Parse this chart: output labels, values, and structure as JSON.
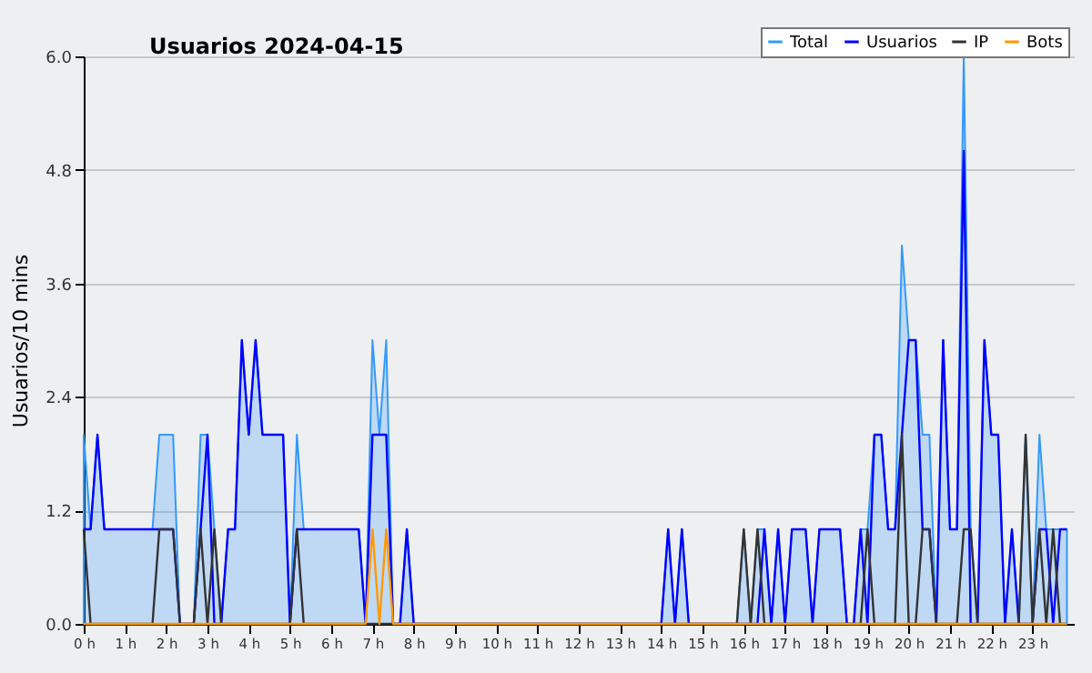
{
  "chart_data": {
    "type": "line",
    "title": "Usuarios  2024-04-15",
    "ylabel": "Usuarios/10 mins",
    "x": [
      0,
      0.167,
      0.333,
      0.5,
      0.667,
      0.833,
      1,
      1.167,
      1.333,
      1.5,
      1.667,
      1.833,
      2,
      2.167,
      2.333,
      2.5,
      2.667,
      2.833,
      3,
      3.167,
      3.333,
      3.5,
      3.667,
      3.833,
      4,
      4.167,
      4.333,
      4.5,
      4.667,
      4.833,
      5,
      5.167,
      5.333,
      5.5,
      5.667,
      5.833,
      6,
      6.167,
      6.333,
      6.5,
      6.667,
      6.833,
      7,
      7.167,
      7.333,
      7.5,
      7.667,
      7.833,
      8,
      8.167,
      8.333,
      8.5,
      8.667,
      8.833,
      9,
      9.167,
      9.333,
      9.5,
      9.667,
      9.833,
      10,
      10.167,
      10.333,
      10.5,
      10.667,
      10.833,
      11,
      11.167,
      11.333,
      11.5,
      11.667,
      11.833,
      12,
      12.167,
      12.333,
      12.5,
      12.667,
      12.833,
      13,
      13.167,
      13.333,
      13.5,
      13.667,
      13.833,
      14,
      14.167,
      14.333,
      14.5,
      14.667,
      14.833,
      15,
      15.167,
      15.333,
      15.5,
      15.667,
      15.833,
      16,
      16.167,
      16.333,
      16.5,
      16.667,
      16.833,
      17,
      17.167,
      17.333,
      17.5,
      17.667,
      17.833,
      18,
      18.167,
      18.333,
      18.5,
      18.667,
      18.833,
      19,
      19.167,
      19.333,
      19.5,
      19.667,
      19.833,
      20,
      20.167,
      20.333,
      20.5,
      20.667,
      20.833,
      21,
      21.167,
      21.333,
      21.5,
      21.667,
      21.833,
      22,
      22.167,
      22.333,
      22.5,
      22.667,
      22.833,
      23,
      23.167,
      23.333,
      23.5,
      23.667,
      23.833
    ],
    "series": [
      {
        "name": "Total",
        "type": "area",
        "color": "#3399ff",
        "values": [
          2,
          1,
          2,
          1,
          1,
          1,
          1,
          1,
          1,
          1,
          1,
          2,
          2,
          2,
          0,
          0,
          0,
          2,
          2,
          1,
          0,
          1,
          1,
          3,
          2,
          3,
          2,
          2,
          2,
          2,
          0,
          2,
          1,
          1,
          1,
          1,
          1,
          1,
          1,
          1,
          1,
          0,
          3,
          2,
          3,
          0,
          0,
          1,
          0,
          0,
          0,
          0,
          0,
          0,
          0,
          0,
          0,
          0,
          0,
          0,
          0,
          0,
          0,
          0,
          0,
          0,
          0,
          0,
          0,
          0,
          0,
          0,
          0,
          0,
          0,
          0,
          0,
          0,
          0,
          0,
          0,
          0,
          0,
          0,
          0,
          1,
          0,
          1,
          0,
          0,
          0,
          0,
          0,
          0,
          0,
          0,
          1,
          0,
          1,
          1,
          0,
          1,
          0,
          1,
          1,
          1,
          0,
          1,
          1,
          1,
          1,
          0,
          0,
          1,
          1,
          2,
          2,
          1,
          1,
          4,
          3,
          3,
          2,
          2,
          0,
          3,
          1,
          1,
          6,
          1,
          0,
          3,
          2,
          2,
          0,
          1,
          0,
          2,
          0,
          2,
          1,
          1,
          1,
          1
        ]
      },
      {
        "name": "Usuarios",
        "color": "#0000ff",
        "values": [
          1,
          1,
          2,
          1,
          1,
          1,
          1,
          1,
          1,
          1,
          1,
          1,
          1,
          1,
          0,
          0,
          0,
          1,
          2,
          0,
          0,
          1,
          1,
          3,
          2,
          3,
          2,
          2,
          2,
          2,
          0,
          1,
          1,
          1,
          1,
          1,
          1,
          1,
          1,
          1,
          1,
          0,
          2,
          2,
          2,
          0,
          0,
          1,
          0,
          0,
          0,
          0,
          0,
          0,
          0,
          0,
          0,
          0,
          0,
          0,
          0,
          0,
          0,
          0,
          0,
          0,
          0,
          0,
          0,
          0,
          0,
          0,
          0,
          0,
          0,
          0,
          0,
          0,
          0,
          0,
          0,
          0,
          0,
          0,
          0,
          1,
          0,
          1,
          0,
          0,
          0,
          0,
          0,
          0,
          0,
          0,
          0,
          0,
          0,
          1,
          0,
          1,
          0,
          1,
          1,
          1,
          0,
          1,
          1,
          1,
          1,
          0,
          0,
          1,
          0,
          2,
          2,
          1,
          1,
          2,
          3,
          3,
          1,
          1,
          0,
          3,
          1,
          1,
          5,
          0,
          0,
          3,
          2,
          2,
          0,
          1,
          0,
          0,
          0,
          1,
          1,
          0,
          1,
          1
        ]
      },
      {
        "name": "IP",
        "color": "#333333",
        "values": [
          1,
          0,
          0,
          0,
          0,
          0,
          0,
          0,
          0,
          0,
          0,
          1,
          1,
          1,
          0,
          0,
          0,
          1,
          0,
          1,
          0,
          0,
          0,
          0,
          0,
          0,
          0,
          0,
          0,
          0,
          0,
          1,
          0,
          0,
          0,
          0,
          0,
          0,
          0,
          0,
          0,
          0,
          0,
          0,
          0,
          0,
          0,
          0,
          0,
          0,
          0,
          0,
          0,
          0,
          0,
          0,
          0,
          0,
          0,
          0,
          0,
          0,
          0,
          0,
          0,
          0,
          0,
          0,
          0,
          0,
          0,
          0,
          0,
          0,
          0,
          0,
          0,
          0,
          0,
          0,
          0,
          0,
          0,
          0,
          0,
          0,
          0,
          0,
          0,
          0,
          0,
          0,
          0,
          0,
          0,
          0,
          1,
          0,
          1,
          0,
          0,
          0,
          0,
          0,
          0,
          0,
          0,
          0,
          0,
          0,
          0,
          0,
          0,
          0,
          1,
          0,
          0,
          0,
          0,
          2,
          0,
          0,
          1,
          1,
          0,
          0,
          0,
          0,
          1,
          1,
          0,
          0,
          0,
          0,
          0,
          0,
          0,
          2,
          0,
          1,
          0,
          1,
          0,
          0
        ]
      },
      {
        "name": "Bots",
        "color": "#ff9900",
        "values": [
          0,
          0,
          0,
          0,
          0,
          0,
          0,
          0,
          0,
          0,
          0,
          0,
          0,
          0,
          0,
          0,
          0,
          0,
          0,
          0,
          0,
          0,
          0,
          0,
          0,
          0,
          0,
          0,
          0,
          0,
          0,
          0,
          0,
          0,
          0,
          0,
          0,
          0,
          0,
          0,
          0,
          0,
          1,
          0,
          1,
          0,
          0,
          0,
          0,
          0,
          0,
          0,
          0,
          0,
          0,
          0,
          0,
          0,
          0,
          0,
          0,
          0,
          0,
          0,
          0,
          0,
          0,
          0,
          0,
          0,
          0,
          0,
          0,
          0,
          0,
          0,
          0,
          0,
          0,
          0,
          0,
          0,
          0,
          0,
          0,
          0,
          0,
          0,
          0,
          0,
          0,
          0,
          0,
          0,
          0,
          0,
          0,
          0,
          0,
          0,
          0,
          0,
          0,
          0,
          0,
          0,
          0,
          0,
          0,
          0,
          0,
          0,
          0,
          0,
          0,
          0,
          0,
          0,
          0,
          0,
          0,
          0,
          0,
          0,
          0,
          0,
          0,
          0,
          0,
          0,
          0,
          0,
          0,
          0,
          0,
          0,
          0,
          0,
          0,
          0,
          0,
          0,
          0,
          0
        ]
      }
    ],
    "xlim": [
      0,
      24
    ],
    "xticks": [
      {
        "value": 0,
        "label": "0 h"
      },
      {
        "value": 1,
        "label": "1 h"
      },
      {
        "value": 2,
        "label": "2 h"
      },
      {
        "value": 3,
        "label": "3 h"
      },
      {
        "value": 4,
        "label": "4 h"
      },
      {
        "value": 5,
        "label": "5 h"
      },
      {
        "value": 6,
        "label": "6 h"
      },
      {
        "value": 7,
        "label": "7 h"
      },
      {
        "value": 8,
        "label": "8 h"
      },
      {
        "value": 9,
        "label": "9 h"
      },
      {
        "value": 10,
        "label": "10 h"
      },
      {
        "value": 11,
        "label": "11 h"
      },
      {
        "value": 12,
        "label": "12 h"
      },
      {
        "value": 13,
        "label": "13 h"
      },
      {
        "value": 14,
        "label": "14 h"
      },
      {
        "value": 15,
        "label": "15 h"
      },
      {
        "value": 16,
        "label": "16 h"
      },
      {
        "value": 17,
        "label": "17 h"
      },
      {
        "value": 18,
        "label": "18 h"
      },
      {
        "value": 19,
        "label": "19 h"
      },
      {
        "value": 20,
        "label": "20 h"
      },
      {
        "value": 21,
        "label": "21 h"
      },
      {
        "value": 22,
        "label": "22 h"
      },
      {
        "value": 23,
        "label": "23 h"
      }
    ],
    "ylim": [
      0,
      6
    ],
    "yticks": [
      {
        "value": 0,
        "label": "0.0"
      },
      {
        "value": 1.2,
        "label": "1.2"
      },
      {
        "value": 2.4,
        "label": "2.4"
      },
      {
        "value": 3.6,
        "label": "3.6"
      },
      {
        "value": 4.8,
        "label": "4.8"
      },
      {
        "value": 6,
        "label": "6.0"
      }
    ],
    "grid": "y",
    "legend": "top right",
    "marker": "none",
    "line_style": "solid"
  }
}
